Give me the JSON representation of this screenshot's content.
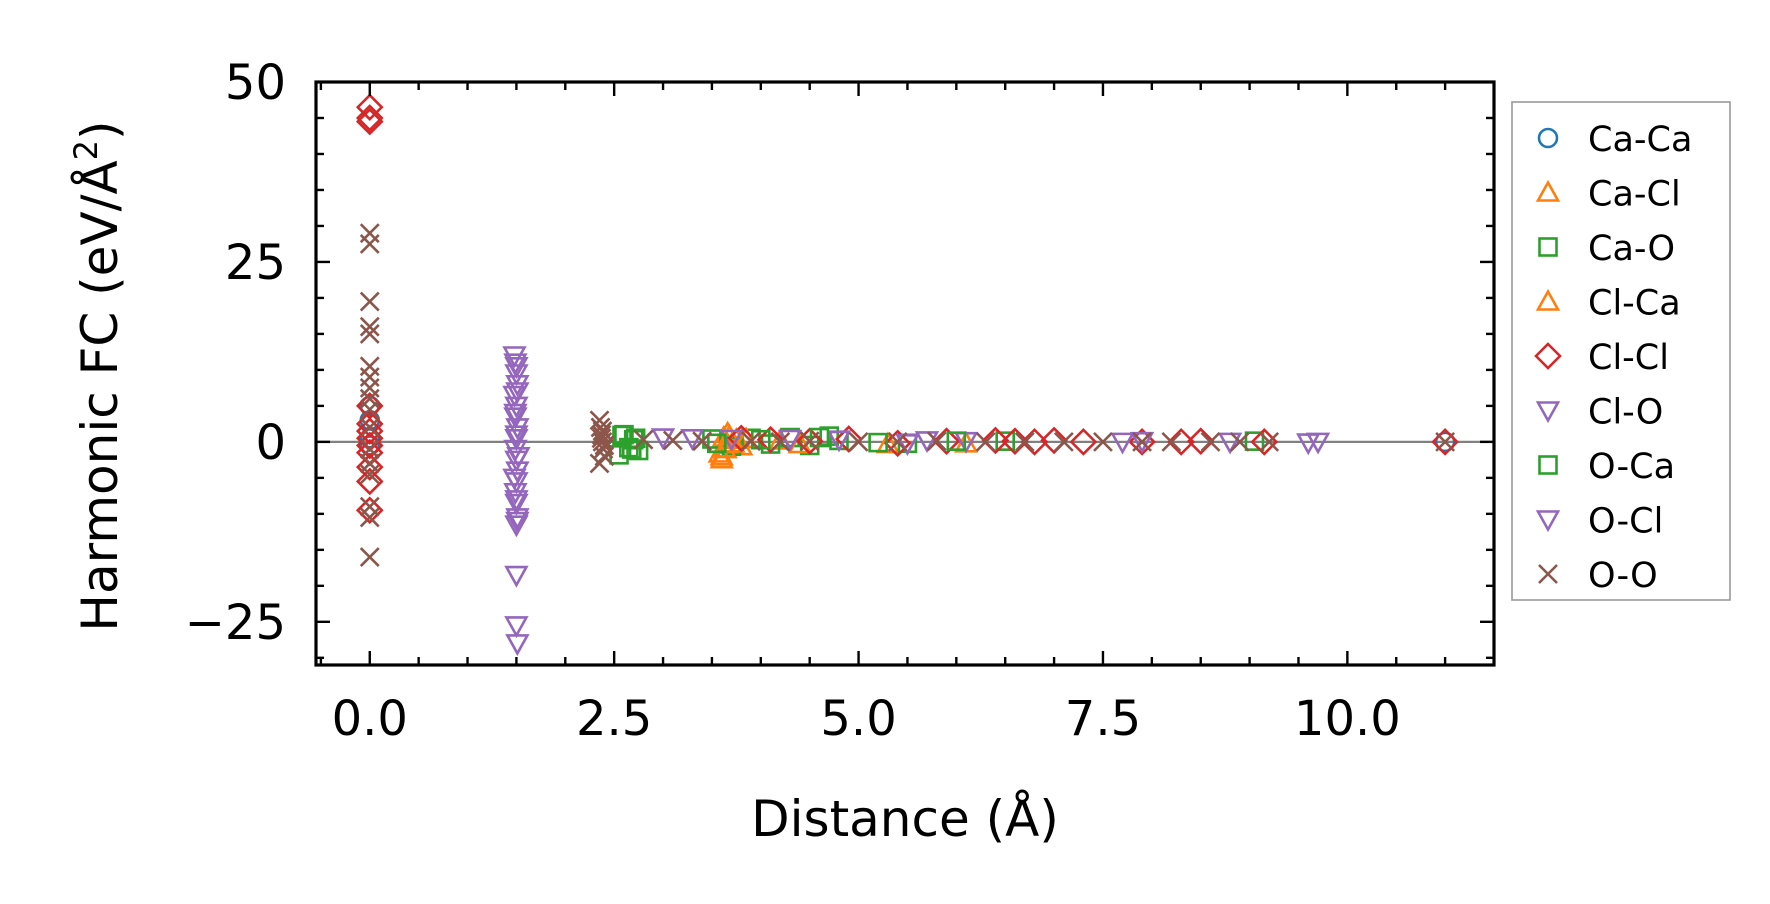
{
  "chart_data": {
    "type": "scatter",
    "xlabel": "Distance (Å)",
    "ylabel_prefix": "Harmonic FC (eV/Å",
    "ylabel_sup": "2",
    "ylabel_suffix": ")",
    "xlim": [
      -0.55,
      11.5
    ],
    "ylim": [
      -31,
      50
    ],
    "xticks": [
      0.0,
      2.5,
      5.0,
      7.5,
      10.0
    ],
    "xtick_labels": [
      "0.0",
      "2.5",
      "5.0",
      "7.5",
      "10.0"
    ],
    "yticks": [
      -25,
      0,
      25,
      50
    ],
    "ytick_labels": [
      "−25",
      "0",
      "25",
      "50"
    ],
    "zero_line": true,
    "grid": false,
    "legend_position": "outside-right",
    "series": [
      {
        "name": "Ca-Ca",
        "marker": "circle",
        "color": "#1f77b4",
        "x": [
          0.0,
          0.0,
          0.0,
          0.0,
          11.0
        ],
        "y": [
          5.0,
          3.0,
          0.5,
          -0.5,
          0.0
        ]
      },
      {
        "name": "Ca-Cl",
        "marker": "triangle-up",
        "color": "#ff7f0e",
        "x": [
          3.58,
          3.6,
          3.62,
          3.64,
          3.66,
          3.7,
          3.75,
          3.8,
          4.2,
          5.3,
          6.1
        ],
        "y": [
          -1.6,
          -2.4,
          0.6,
          -1.0,
          1.2,
          -0.4,
          0.3,
          -0.6,
          0.2,
          -0.3,
          -0.2
        ]
      },
      {
        "name": "Ca-O",
        "marker": "square",
        "color": "#2ca02c",
        "x": [
          2.55,
          2.6,
          2.65,
          2.7,
          2.75,
          3.5,
          3.7,
          3.9,
          4.1,
          4.3,
          4.5,
          4.7,
          4.8,
          5.5,
          6.5,
          9.05
        ],
        "y": [
          -1.8,
          1.0,
          -0.8,
          0.3,
          -1.2,
          0.4,
          -0.6,
          0.5,
          -0.3,
          0.6,
          -0.5,
          0.8,
          0.2,
          -0.2,
          0.1,
          0.1
        ]
      },
      {
        "name": "Cl-Ca",
        "marker": "triangle-up",
        "color": "#ff7f0e",
        "x": [
          3.6,
          3.63,
          3.68,
          3.72,
          3.85,
          4.4
        ],
        "y": [
          -2.0,
          -0.9,
          0.8,
          -0.2,
          0.4,
          -0.3
        ]
      },
      {
        "name": "Cl-Cl",
        "marker": "diamond",
        "color": "#d62728",
        "x": [
          0.0,
          0.0,
          0.0,
          0.0,
          0.0,
          0.0,
          0.0,
          0.0,
          0.0,
          0.0,
          0.0,
          0.0,
          3.8,
          4.1,
          4.5,
          4.9,
          5.4,
          5.9,
          6.4,
          6.6,
          6.8,
          7.0,
          7.3,
          7.9,
          8.3,
          8.5,
          9.15,
          11.0
        ],
        "y": [
          46.5,
          45.0,
          44.5,
          5.0,
          2.5,
          1.5,
          0.5,
          -0.5,
          -1.5,
          -3.5,
          -5.5,
          -9.5,
          0.5,
          0.3,
          0.1,
          0.4,
          -0.2,
          0.1,
          0.2,
          0.1,
          0.0,
          0.2,
          0.0,
          0.0,
          0.0,
          0.1,
          0.0,
          0.0
        ]
      },
      {
        "name": "Cl-O",
        "marker": "triangle-down",
        "color": "#9467bd",
        "x": [
          1.48,
          1.49,
          1.5,
          1.51,
          1.48,
          1.5,
          1.49,
          1.51,
          1.5,
          1.49,
          1.5,
          1.51,
          1.5,
          1.49,
          1.5,
          1.51,
          3.0,
          3.3,
          3.7,
          4.8,
          5.7,
          6.1,
          7.7,
          8.8,
          9.6
        ],
        "y": [
          12.0,
          11.0,
          9.5,
          8.0,
          6.5,
          5.0,
          3.5,
          2.0,
          0.5,
          -1.0,
          -2.5,
          -4.0,
          -5.5,
          -7.0,
          -8.5,
          -10.5,
          0.6,
          0.5,
          0.4,
          0.3,
          0.2,
          0.1,
          0.0,
          0.0,
          -0.1
        ]
      },
      {
        "name": "O-Ca",
        "marker": "square",
        "color": "#2ca02c",
        "x": [
          2.58,
          2.68,
          2.72,
          3.55,
          4.0,
          4.6,
          5.2,
          6.0
        ],
        "y": [
          0.9,
          -1.0,
          0.5,
          -0.2,
          0.3,
          0.6,
          -0.1,
          0.1
        ]
      },
      {
        "name": "O-Cl",
        "marker": "triangle-down",
        "color": "#9467bd",
        "x": [
          1.5,
          1.51,
          1.49,
          1.5,
          1.52,
          1.48,
          1.5,
          1.51,
          1.5,
          1.5,
          1.5,
          1.51,
          4.3,
          5.5,
          7.9,
          9.7
        ],
        "y": [
          10.5,
          7.0,
          4.0,
          1.0,
          -2.0,
          -5.0,
          -8.0,
          -11.0,
          -11.5,
          -18.5,
          -25.5,
          -28.0,
          0.4,
          -0.2,
          0.1,
          0.0
        ]
      },
      {
        "name": "O-O",
        "marker": "x",
        "color": "#8c564b",
        "x": [
          0.0,
          0.0,
          0.0,
          0.0,
          0.0,
          0.0,
          0.0,
          0.0,
          0.0,
          0.0,
          0.0,
          0.0,
          0.0,
          0.0,
          0.0,
          0.0,
          0.0,
          2.35,
          2.36,
          2.37,
          2.38,
          2.39,
          2.4,
          2.35,
          2.37,
          2.4,
          2.38,
          2.8,
          3.1,
          3.4,
          3.9,
          4.2,
          4.5,
          5.0,
          5.4,
          5.8,
          6.3,
          6.7,
          7.1,
          7.5,
          7.9,
          8.2,
          8.6,
          8.9,
          9.2,
          11.0
        ],
        "y": [
          29.0,
          27.5,
          19.5,
          16.0,
          15.0,
          10.5,
          9.0,
          7.5,
          6.0,
          4.5,
          2.0,
          -1.0,
          -3.0,
          -4.5,
          -9.0,
          -10.5,
          -16.0,
          3.0,
          2.0,
          1.0,
          0.0,
          -1.0,
          -2.0,
          -3.0,
          0.5,
          -0.5,
          1.5,
          0.3,
          0.2,
          0.1,
          0.1,
          0.0,
          0.1,
          0.0,
          0.0,
          0.1,
          0.0,
          0.0,
          0.0,
          0.0,
          0.0,
          0.0,
          0.0,
          0.0,
          0.0,
          0.0
        ]
      }
    ]
  }
}
